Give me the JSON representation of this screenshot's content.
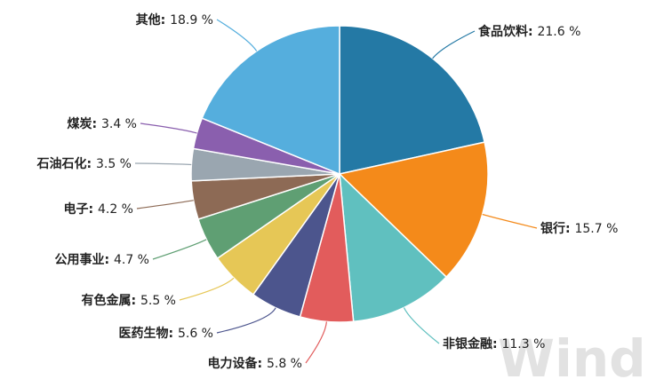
{
  "chart_data": {
    "type": "pie",
    "title": "",
    "start": "top",
    "direction": "clockwise",
    "slices": [
      {
        "label": "食品饮料",
        "value": 21.6,
        "display": "21.6 %",
        "color": "#2479a5"
      },
      {
        "label": "银行",
        "value": 15.7,
        "display": "15.7 %",
        "color": "#f48a1a"
      },
      {
        "label": "非银金融",
        "value": 11.3,
        "display": "11.3 %",
        "color": "#60c0bf"
      },
      {
        "label": "电力设备",
        "value": 5.8,
        "display": "5.8 %",
        "color": "#e25c5c"
      },
      {
        "label": "医药生物",
        "value": 5.6,
        "display": "5.6 %",
        "color": "#4c558d"
      },
      {
        "label": "有色金属",
        "value": 5.5,
        "display": "5.5 %",
        "color": "#e6c756"
      },
      {
        "label": "公用事业",
        "value": 4.7,
        "display": "4.7 %",
        "color": "#5f9f73"
      },
      {
        "label": "电子",
        "value": 4.2,
        "display": "4.2 %",
        "color": "#8d6a55"
      },
      {
        "label": "石油石化",
        "value": 3.5,
        "display": "3.5 %",
        "color": "#9aa6b0"
      },
      {
        "label": "煤炭",
        "value": 3.4,
        "display": "3.4 %",
        "color": "#8a5fae"
      },
      {
        "label": "其他",
        "value": 18.9,
        "display": "18.9 %",
        "color": "#55aedd"
      }
    ]
  },
  "watermark": "Wind"
}
